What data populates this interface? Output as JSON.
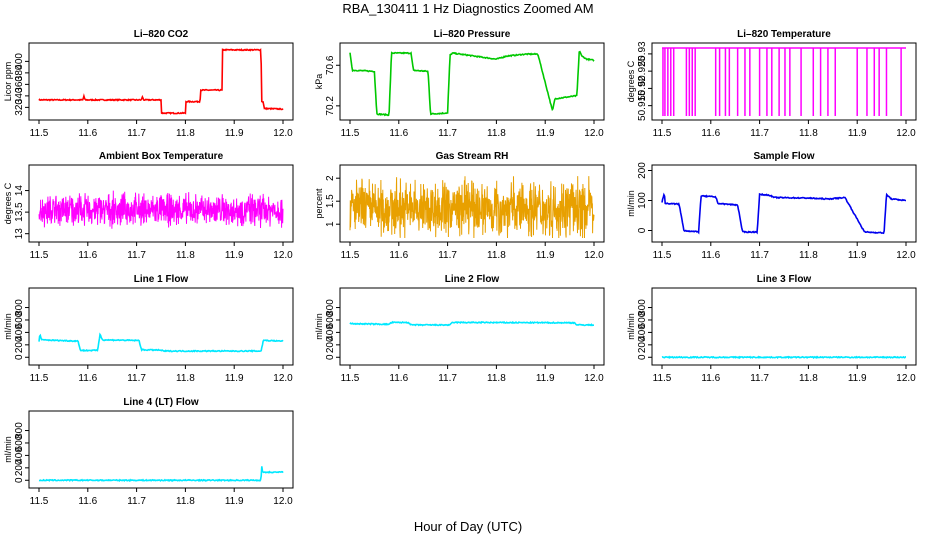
{
  "figure": {
    "title": "RBA_130411  1 Hz Diagnostics Zoomed AM",
    "xlabel": "Hour of Day (UTC)",
    "x_range": [
      11.5,
      12.0
    ],
    "x_ticks": [
      "11.5",
      "11.6",
      "11.7",
      "11.8",
      "11.9",
      "12.0"
    ]
  },
  "chart_data": [
    {
      "type": "line",
      "title": "Li–820 CO2",
      "ylabel": "Licor ppm",
      "color": "#ff0000",
      "ylim": [
        305,
        425
      ],
      "yticks": [
        320,
        340,
        360,
        380,
        400
      ],
      "series": [
        {
          "name": "CO2",
          "x": [
            11.5,
            11.59,
            11.592,
            11.594,
            11.6,
            11.71,
            11.712,
            11.714,
            11.75,
            11.751,
            11.8,
            11.801,
            11.83,
            11.831,
            11.875,
            11.876,
            11.955,
            11.956,
            11.96,
            11.961,
            12.0
          ],
          "values": [
            333,
            333,
            340,
            333,
            333,
            333,
            339,
            333,
            333,
            310,
            310,
            330,
            330,
            350,
            350,
            420,
            420,
            330,
            330,
            318,
            317
          ]
        }
      ]
    },
    {
      "type": "line",
      "title": "Li–820 Pressure",
      "ylabel": "kPa",
      "color": "#00c800",
      "ylim": [
        70.1,
        70.78
      ],
      "yticks": [
        70.2,
        70.6
      ],
      "series": [
        {
          "name": "Pressure",
          "x": [
            11.5,
            11.505,
            11.51,
            11.55,
            11.555,
            11.58,
            11.585,
            11.625,
            11.63,
            11.66,
            11.665,
            11.7,
            11.705,
            11.71,
            11.8,
            11.82,
            11.86,
            11.885,
            11.915,
            11.92,
            11.965,
            11.97,
            11.975,
            11.985,
            12.0
          ],
          "values": [
            70.72,
            70.55,
            70.55,
            70.54,
            70.12,
            70.11,
            70.72,
            70.72,
            70.55,
            70.54,
            70.12,
            70.13,
            70.7,
            70.72,
            70.66,
            70.69,
            70.71,
            70.71,
            70.15,
            70.27,
            70.3,
            70.75,
            70.69,
            70.66,
            70.65
          ]
        }
      ]
    },
    {
      "type": "line",
      "title": "Li–820 Temperature",
      "ylabel": "degrees C",
      "color": "#ff00ff",
      "ylim": [
        50.912,
        50.932
      ],
      "yticks": [
        50.915,
        50.92,
        50.925,
        50.93
      ],
      "series": [
        {
          "name": "Temperature",
          "baseline": 50.9317,
          "drop_value": 50.912,
          "drop_x": [
            11.502,
            11.506,
            11.512,
            11.518,
            11.524,
            11.55,
            11.556,
            11.562,
            11.568,
            11.61,
            11.618,
            11.63,
            11.638,
            11.655,
            11.67,
            11.68,
            11.7,
            11.715,
            11.725,
            11.74,
            11.752,
            11.762,
            11.785,
            11.81,
            11.825,
            11.84,
            11.855,
            11.9,
            11.92,
            11.935,
            11.945,
            11.96,
            11.99
          ]
        }
      ]
    },
    {
      "type": "line",
      "title": "Ambient Box Temperature",
      "ylabel": "degrees C",
      "color": "#ff00ff",
      "ylim": [
        12.9,
        14.5
      ],
      "yticks": [
        13.0,
        13.5,
        14.0
      ],
      "series": [
        {
          "name": "Box temperature",
          "mean": 13.55,
          "noise": 0.45
        }
      ]
    },
    {
      "type": "line",
      "title": "Gas Stream RH",
      "ylabel": "percent",
      "color": "#e8a000",
      "ylim": [
        0.7,
        2.2
      ],
      "yticks": [
        1.0,
        1.5,
        2.0
      ],
      "series": [
        {
          "name": "RH",
          "mean": 1.35,
          "noise": 0.75
        }
      ]
    },
    {
      "type": "line",
      "title": "Sample Flow",
      "ylabel": "ml/min",
      "color": "#0000ee",
      "ylim": [
        -25,
        205
      ],
      "yticks": [
        0,
        100,
        200
      ],
      "series": [
        {
          "name": "Sample flow",
          "x": [
            11.5,
            11.505,
            11.506,
            11.535,
            11.545,
            11.575,
            11.58,
            11.61,
            11.615,
            11.655,
            11.665,
            11.695,
            11.7,
            11.72,
            11.73,
            11.8,
            11.84,
            11.875,
            11.915,
            11.955,
            11.96,
            11.97,
            12.0
          ],
          "values": [
            95,
            125,
            90,
            88,
            0,
            -5,
            115,
            112,
            90,
            85,
            -5,
            -5,
            120,
            118,
            110,
            108,
            105,
            110,
            -5,
            -8,
            120,
            105,
            100
          ]
        }
      ]
    },
    {
      "type": "line",
      "title": "Line 1 Flow",
      "ylabel": "ml/min",
      "color": "#00e8ff",
      "ylim": [
        -60,
        1050
      ],
      "yticks": [
        0,
        200,
        400,
        600,
        800
      ],
      "series": [
        {
          "name": "Line 1",
          "x": [
            11.5,
            11.502,
            11.505,
            11.58,
            11.585,
            11.62,
            11.625,
            11.63,
            11.705,
            11.71,
            11.75,
            11.755,
            11.955,
            11.96,
            11.965,
            12.0
          ],
          "values": [
            250,
            380,
            280,
            260,
            110,
            110,
            370,
            280,
            270,
            120,
            115,
            100,
            100,
            280,
            270,
            260
          ]
        }
      ]
    },
    {
      "type": "line",
      "title": "Line 2 Flow",
      "ylabel": "ml/min",
      "color": "#00e8ff",
      "ylim": [
        -60,
        1050
      ],
      "yticks": [
        0,
        200,
        400,
        600,
        800
      ],
      "series": [
        {
          "name": "Line 2",
          "x": [
            11.5,
            11.505,
            11.58,
            11.585,
            11.62,
            11.625,
            11.705,
            11.71,
            11.96,
            11.965,
            12.0
          ],
          "values": [
            540,
            540,
            530,
            560,
            560,
            520,
            520,
            560,
            555,
            520,
            520
          ]
        }
      ]
    },
    {
      "type": "line",
      "title": "Line 3 Flow",
      "ylabel": "ml/min",
      "color": "#00e8ff",
      "ylim": [
        -60,
        1050
      ],
      "yticks": [
        0,
        200,
        400,
        600,
        800
      ],
      "series": [
        {
          "name": "Line 3",
          "x": [
            11.5,
            12.0
          ],
          "values": [
            0,
            0
          ]
        }
      ]
    },
    {
      "type": "line",
      "title": "Line 4 (LT) Flow",
      "ylabel": "ml/min",
      "color": "#00e8ff",
      "ylim": [
        -60,
        1050
      ],
      "yticks": [
        0,
        200,
        400,
        600,
        800
      ],
      "series": [
        {
          "name": "Line 4",
          "x": [
            11.5,
            11.955,
            11.956,
            11.958,
            11.96,
            12.0
          ],
          "values": [
            0,
            0,
            270,
            130,
            130,
            130
          ]
        }
      ]
    }
  ]
}
